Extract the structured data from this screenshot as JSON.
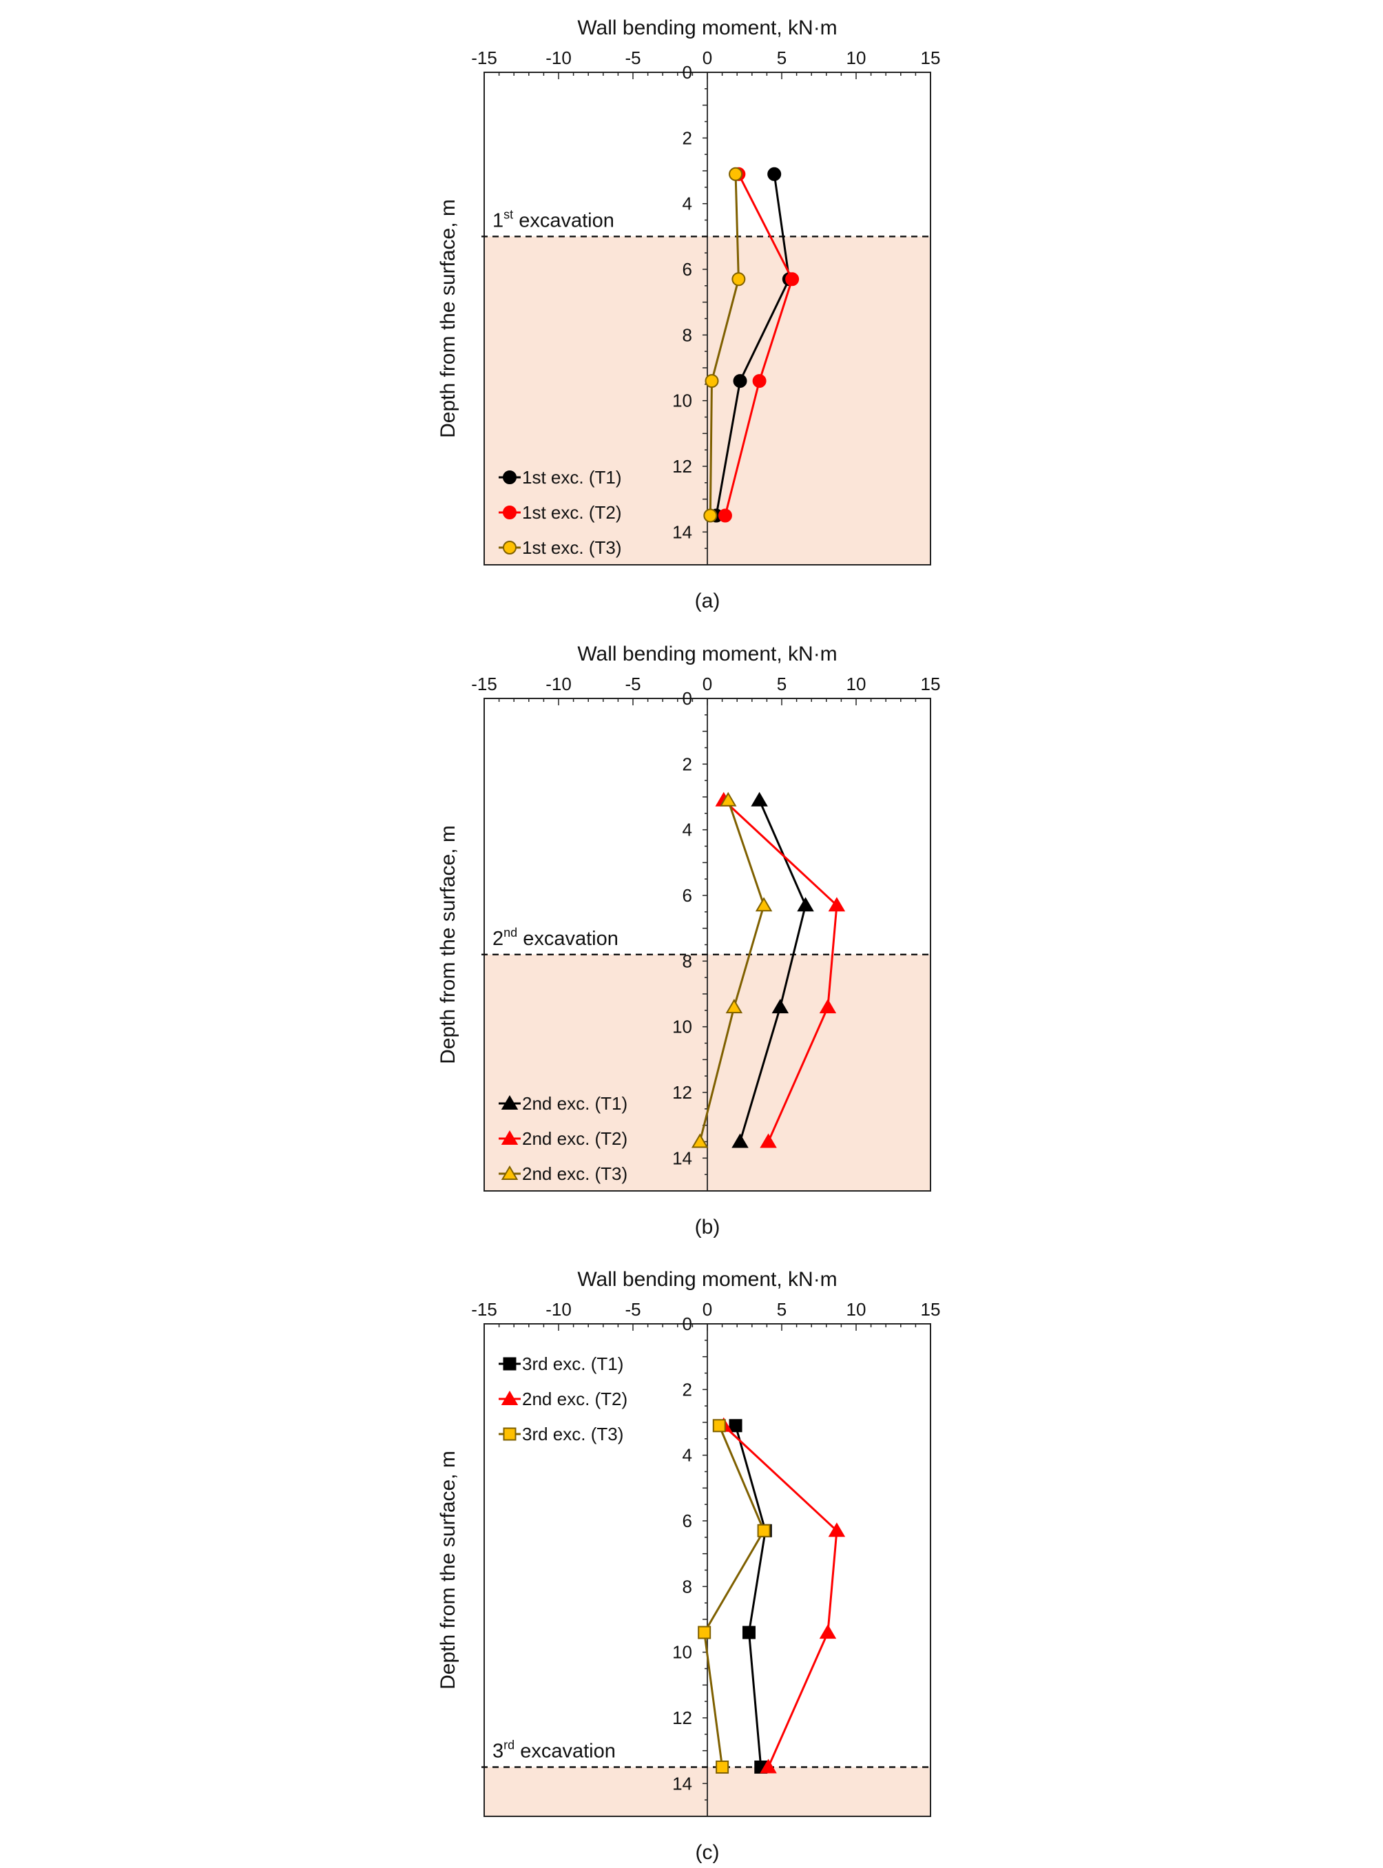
{
  "chart_data": [
    {
      "type": "line",
      "panel_label": "(a)",
      "xlabel": "Wall bending moment, kN·m",
      "ylabel": "Depth from the surface, m",
      "xlim": [
        -15,
        15
      ],
      "ylim": [
        0,
        15
      ],
      "y_inverted": true,
      "x_ticks": [
        -15,
        -10,
        -5,
        0,
        5,
        10,
        15
      ],
      "y_ticks": [
        0,
        2,
        4,
        6,
        8,
        10,
        12,
        14
      ],
      "excavation": {
        "label_num": "1",
        "label_sup": "st",
        "label_rest": " excavation",
        "depth": 5.0
      },
      "legend_position": "bottom-left",
      "colors": {
        "shaded": "#fbe5d8"
      },
      "series": [
        {
          "name": "1st exc. (T1)",
          "marker": "circle",
          "color": "#000000",
          "fill": "#000000",
          "line": "#000000",
          "x": [
            4.5,
            5.5,
            2.2,
            0.6
          ],
          "y": [
            3.1,
            6.3,
            9.4,
            13.5
          ]
        },
        {
          "name": "1st exc. (T2)",
          "marker": "circle",
          "color": "#ff0000",
          "fill": "#ff0000",
          "line": "#ff0000",
          "x": [
            2.1,
            5.7,
            3.5,
            1.2
          ],
          "y": [
            3.1,
            6.3,
            9.4,
            13.5
          ]
        },
        {
          "name": "1st exc. (T3)",
          "marker": "circle",
          "color": "#7f6000",
          "fill": "#ffc000",
          "line": "#7f6000",
          "x": [
            1.9,
            2.1,
            0.3,
            0.2
          ],
          "y": [
            3.1,
            6.3,
            9.4,
            13.5
          ]
        }
      ]
    },
    {
      "type": "line",
      "panel_label": "(b)",
      "xlabel": "Wall bending moment, kN·m",
      "ylabel": "Depth from the surface, m",
      "xlim": [
        -15,
        15
      ],
      "ylim": [
        0,
        15
      ],
      "y_inverted": true,
      "x_ticks": [
        -15,
        -10,
        -5,
        0,
        5,
        10,
        15
      ],
      "y_ticks": [
        0,
        2,
        4,
        6,
        8,
        10,
        12,
        14
      ],
      "excavation": {
        "label_num": "2",
        "label_sup": "nd",
        "label_rest": " excavation",
        "depth": 7.8
      },
      "legend_position": "bottom-left",
      "colors": {
        "shaded": "#fbe5d8"
      },
      "series": [
        {
          "name": "2nd exc. (T1)",
          "marker": "triangle",
          "color": "#000000",
          "fill": "#000000",
          "line": "#000000",
          "x": [
            3.5,
            6.6,
            4.9,
            2.2
          ],
          "y": [
            3.1,
            6.3,
            9.4,
            13.5
          ]
        },
        {
          "name": "2nd exc. (T2)",
          "marker": "triangle",
          "color": "#ff0000",
          "fill": "#ff0000",
          "line": "#ff0000",
          "x": [
            1.1,
            8.7,
            8.1,
            4.1
          ],
          "y": [
            3.1,
            6.3,
            9.4,
            13.5
          ]
        },
        {
          "name": "2nd exc. (T3)",
          "marker": "triangle",
          "color": "#7f6000",
          "fill": "#ffc000",
          "line": "#7f6000",
          "x": [
            1.4,
            3.8,
            1.8,
            -0.5
          ],
          "y": [
            3.1,
            6.3,
            9.4,
            13.5
          ]
        }
      ]
    },
    {
      "type": "line",
      "panel_label": "(c)",
      "xlabel": "Wall bending moment, kN·m",
      "ylabel": "Depth from the surface, m",
      "xlim": [
        -15,
        15
      ],
      "ylim": [
        0,
        15
      ],
      "y_inverted": true,
      "x_ticks": [
        -15,
        -10,
        -5,
        0,
        5,
        10,
        15
      ],
      "y_ticks": [
        0,
        2,
        4,
        6,
        8,
        10,
        12,
        14
      ],
      "excavation": {
        "label_num": "3",
        "label_sup": "rd",
        "label_rest": " excavation",
        "depth": 13.5
      },
      "legend_position": "top-left",
      "colors": {
        "shaded": "#fbe5d8"
      },
      "series": [
        {
          "name": "3rd exc. (T1)",
          "marker": "square",
          "color": "#000000",
          "fill": "#000000",
          "line": "#000000",
          "x": [
            1.9,
            3.9,
            2.8,
            3.6
          ],
          "y": [
            3.1,
            6.3,
            9.4,
            13.5
          ]
        },
        {
          "name": "2nd exc. (T2)",
          "marker": "triangle",
          "color": "#ff0000",
          "fill": "#ff0000",
          "line": "#ff0000",
          "x": [
            1.1,
            8.7,
            8.1,
            4.1
          ],
          "y": [
            3.1,
            6.3,
            9.4,
            13.5
          ]
        },
        {
          "name": "3rd exc. (T3)",
          "marker": "square",
          "color": "#7f6000",
          "fill": "#ffc000",
          "line": "#7f6000",
          "x": [
            0.8,
            3.8,
            -0.2,
            1.0
          ],
          "y": [
            3.1,
            6.3,
            9.4,
            13.5
          ]
        }
      ]
    }
  ]
}
